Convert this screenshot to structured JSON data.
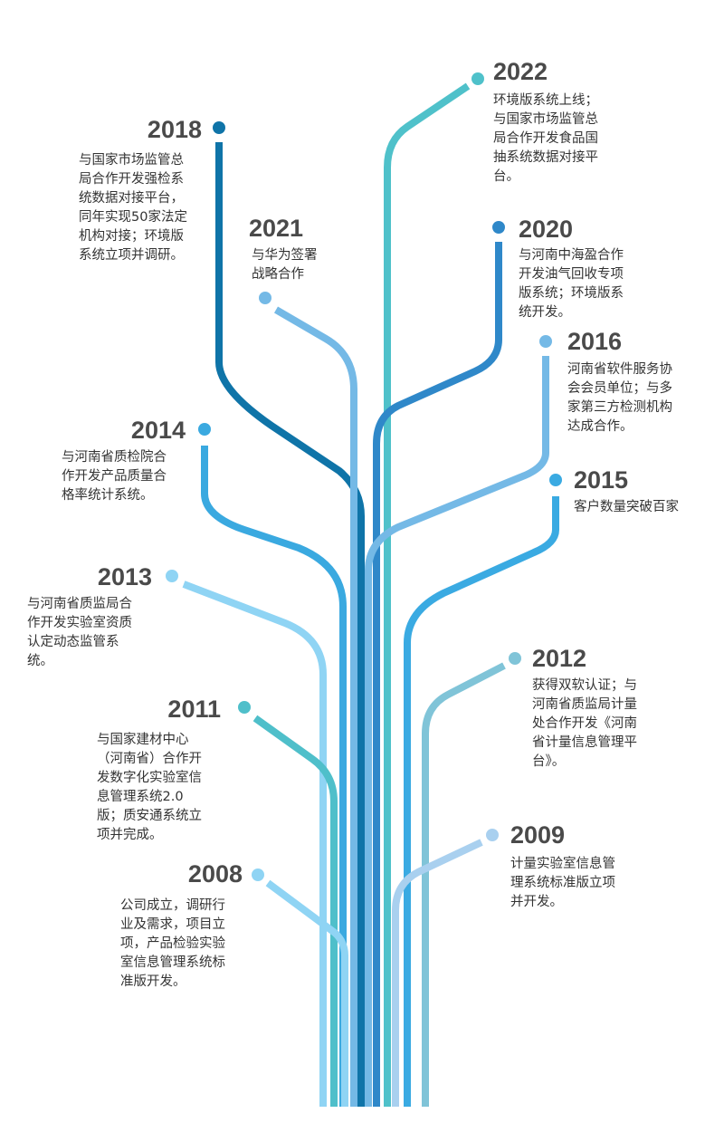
{
  "events": [
    {
      "year": "2018",
      "color": "#0f74a8",
      "lines": [
        "与国家市场监管总",
        "局合作开发强检系",
        "统数据对接平台，",
        "同年实现50家法定",
        "机构对接；环境版",
        "系统立项并调研。"
      ]
    },
    {
      "year": "2021",
      "color": "#74b9e6",
      "lines": [
        "与华为签署",
        "战略合作"
      ]
    },
    {
      "year": "2014",
      "color": "#3aa9e0",
      "lines": [
        "与河南省质检院合",
        "作开发产品质量合",
        "格率统计系统。"
      ]
    },
    {
      "year": "2013",
      "color": "#8fd4f4",
      "lines": [
        "与河南省质监局合",
        "作开发实验室资质",
        "认定动态监管系",
        "统。"
      ]
    },
    {
      "year": "2011",
      "color": "#4fbfca",
      "lines": [
        "与国家建材中心",
        "（河南省）合作开",
        "发数字化实验室信",
        "息管理系统2.0",
        "版；质安通系统立",
        "项并完成。"
      ]
    },
    {
      "year": "2008",
      "color": "#8fd4f4",
      "lines": [
        "公司成立，调研行",
        "业及需求，项目立",
        "项，产品检验实验",
        "室信息管理系统标",
        "准版开发。"
      ]
    },
    {
      "year": "2022",
      "color": "#4fc1ca",
      "lines": [
        "环境版系统上线；",
        "与国家市场监管总",
        "局合作开发食品国",
        "抽系统数据对接平",
        "台。"
      ]
    },
    {
      "year": "2020",
      "color": "#2f88c9",
      "lines": [
        "与河南中海盈合作",
        "开发油气回收专项",
        "版系统；环境版系",
        "统开发。"
      ]
    },
    {
      "year": "2016",
      "color": "#74b9e6",
      "lines": [
        "河南省软件服务协",
        "会会员单位；与多",
        "家第三方检测机构",
        "达成合作。"
      ]
    },
    {
      "year": "2015",
      "color": "#3aaae2",
      "lines": [
        "客户数量突破百家"
      ]
    },
    {
      "year": "2012",
      "color": "#80c4d8",
      "lines": [
        "获得双软认证；与",
        "河南省质监局计量",
        "处合作开发《河南",
        "省计量信息管理平",
        "台》。"
      ]
    },
    {
      "year": "2009",
      "color": "#a9d0ef",
      "lines": [
        "计量实验室信息管",
        "理系统标准版立项",
        "并开发。"
      ]
    }
  ]
}
